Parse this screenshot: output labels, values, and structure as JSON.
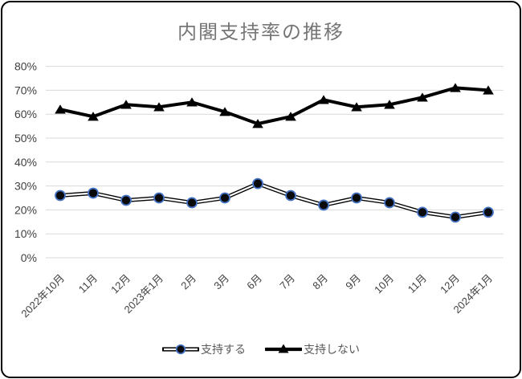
{
  "chart_data": {
    "type": "line",
    "title": "内閣支持率の推移",
    "categories": [
      "2022年10月",
      "11月",
      "12月",
      "2023年1月",
      "2月",
      "3月",
      "6月",
      "7月",
      "8月",
      "9月",
      "10月",
      "11月",
      "12月",
      "2024年1月"
    ],
    "series": [
      {
        "name": "支持する",
        "marker": "circle",
        "values": [
          26,
          27,
          24,
          25,
          23,
          25,
          31,
          26,
          22,
          25,
          23,
          19,
          17,
          19
        ]
      },
      {
        "name": "支持しない",
        "marker": "triangle",
        "values": [
          62,
          59,
          64,
          63,
          65,
          61,
          56,
          59,
          66,
          63,
          64,
          67,
          71,
          70
        ]
      }
    ],
    "xlabel": "",
    "ylabel": "",
    "ylim": [
      0,
      80
    ],
    "ytick_step": 10,
    "ytick_labels": [
      "0%",
      "10%",
      "20%",
      "30%",
      "40%",
      "50%",
      "60%",
      "70%",
      "80%"
    ],
    "grid": true,
    "legend_position": "bottom",
    "colors": {
      "line": "#000000",
      "marker_fill": "#0a0a0a",
      "marker_ring": "#4472C4",
      "double_line_inner": "#ffffff",
      "gridline": "#D9D9D9",
      "axis_text": "#404040",
      "title_text": "#767676",
      "frame_border": "#000000"
    }
  }
}
